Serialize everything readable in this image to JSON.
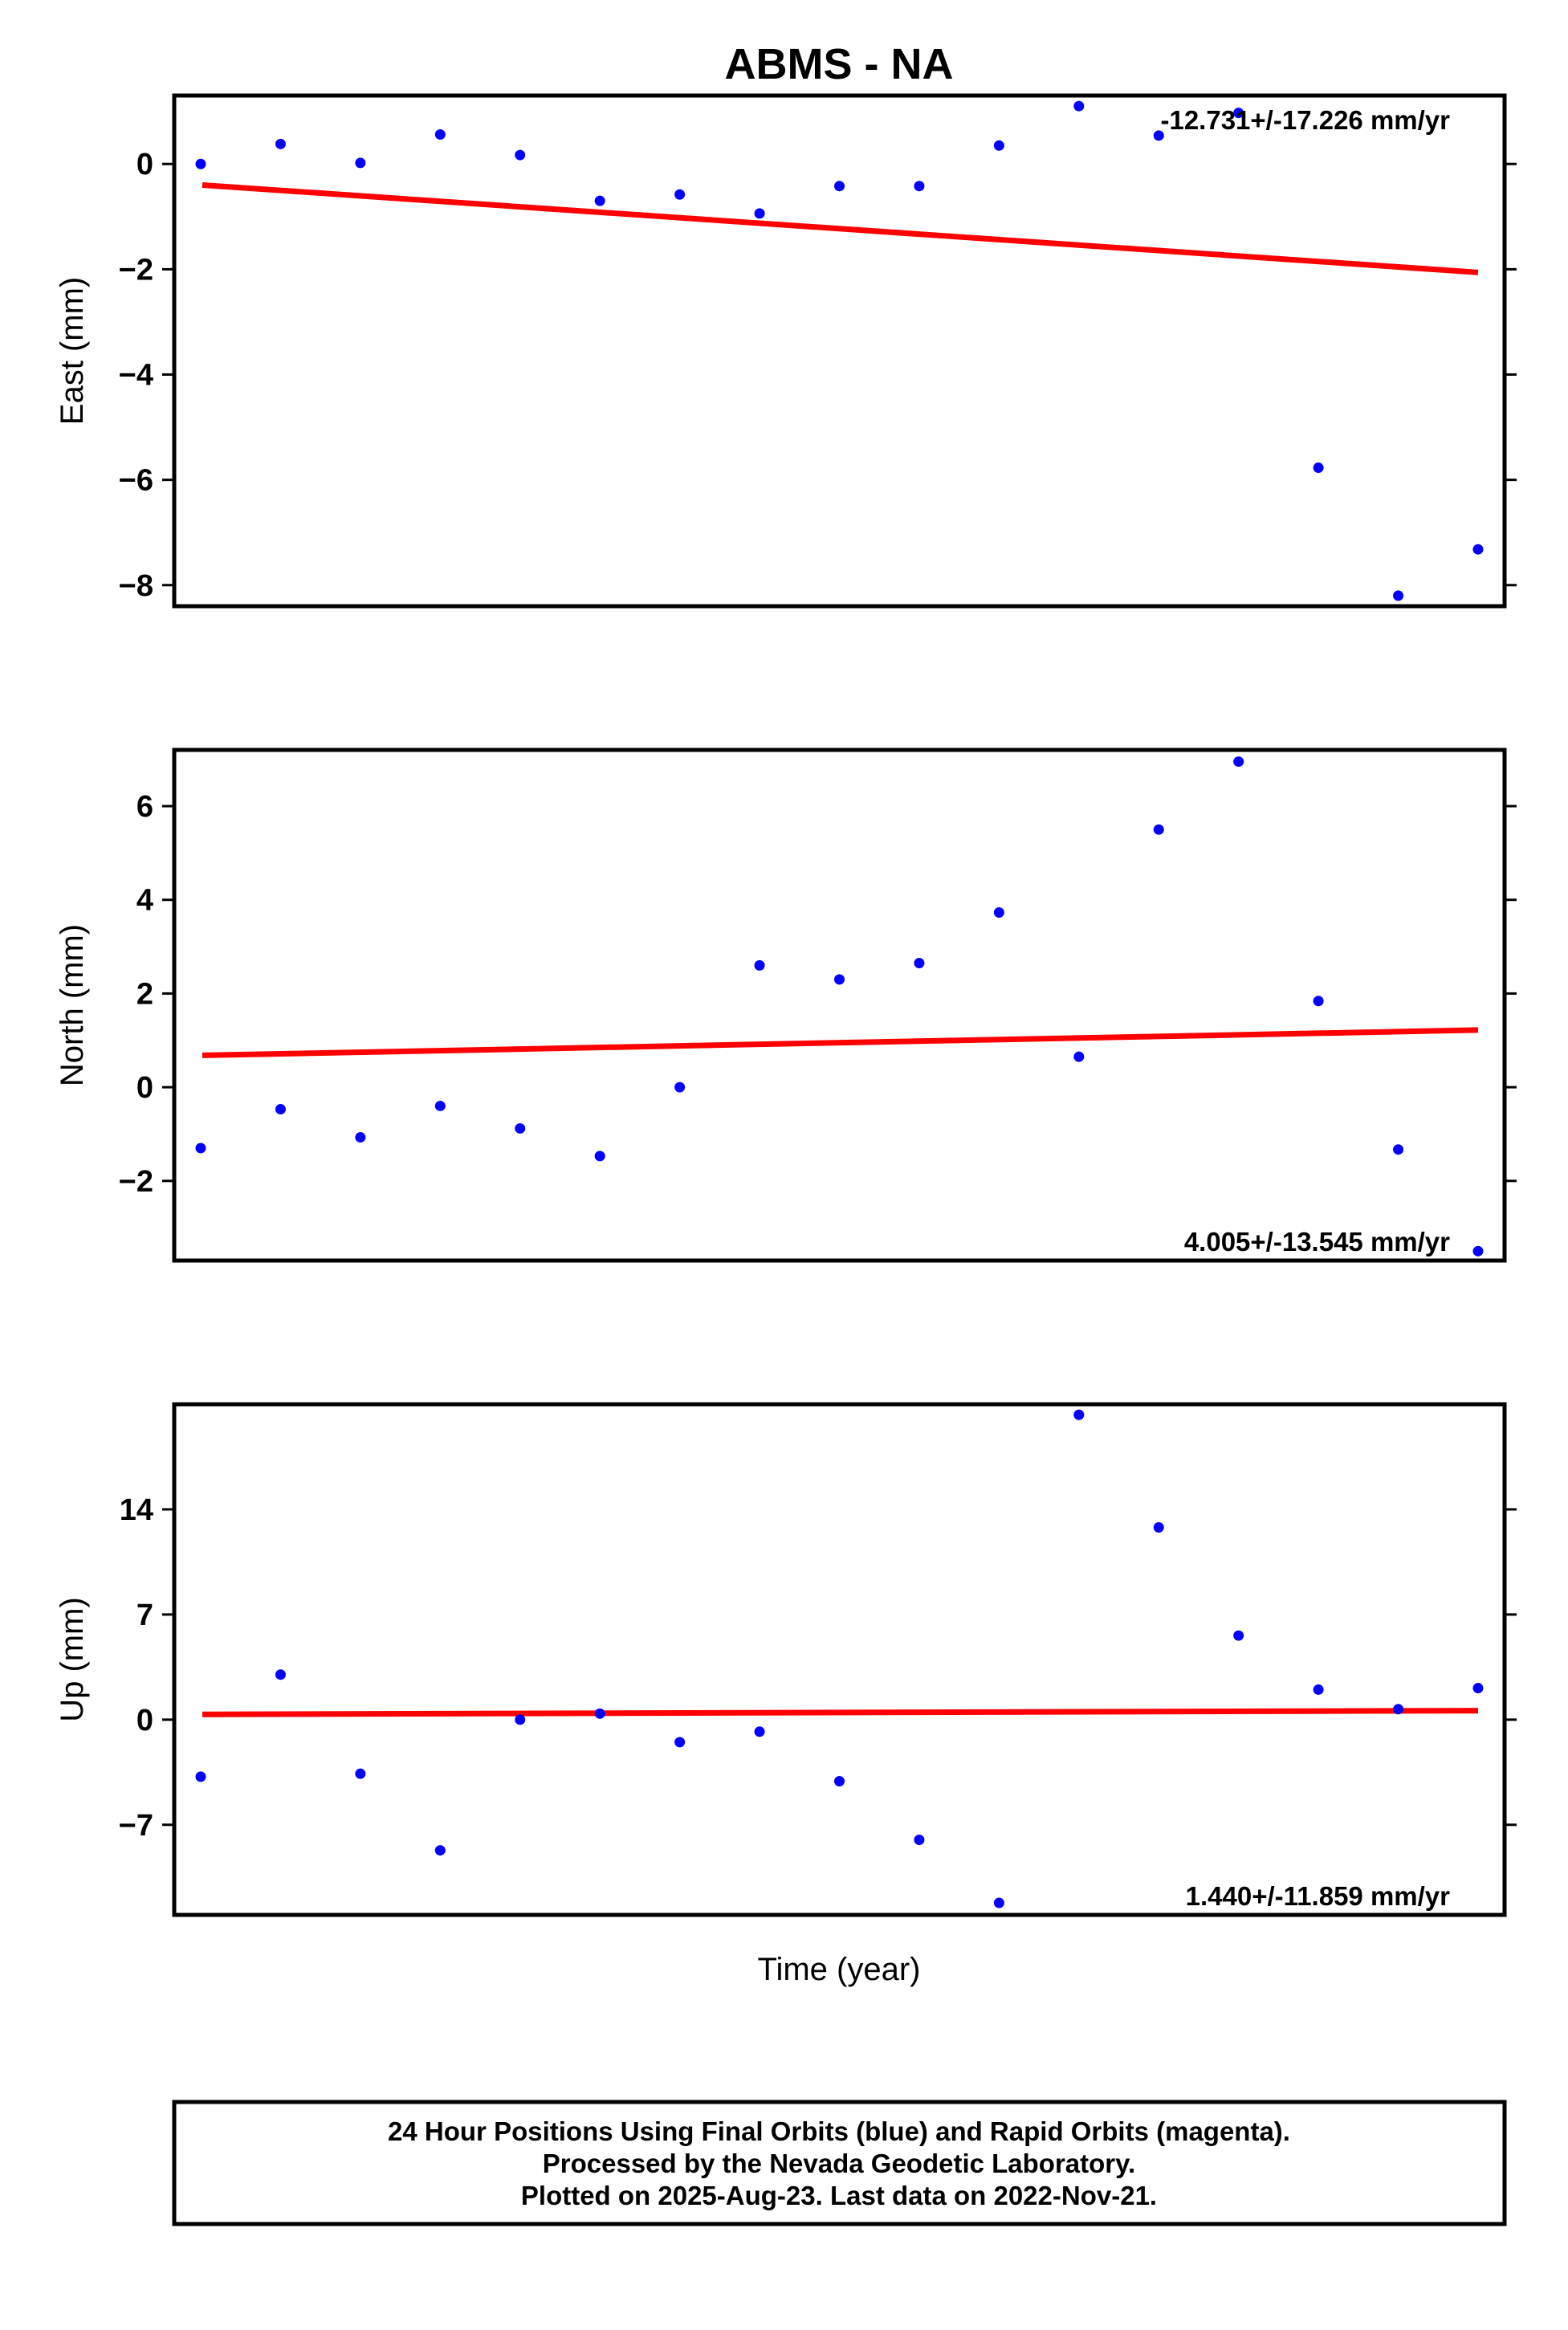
{
  "chart_data": {
    "type": "scatter",
    "title": "ABMS - NA",
    "xlabel": "Time (year)",
    "point_color": "#0000ff",
    "trend_color": "#ff0000",
    "panels": [
      {
        "ylabel": "East (mm)",
        "rate": "-12.731+/-17.226 mm/yr",
        "rate_position": "top-right",
        "ylim": [
          -8.4,
          1.3
        ],
        "yticks": [
          0,
          -2,
          -4,
          -6,
          -8
        ],
        "ytick_labels": [
          "0",
          "−2",
          "−4",
          "−6",
          "−8"
        ],
        "values": [
          0.0,
          0.38,
          0.02,
          0.56,
          0.17,
          -0.7,
          -0.58,
          -0.94,
          -0.42,
          -0.42,
          0.35,
          1.1,
          0.54,
          0.97,
          -5.77,
          -8.2,
          -7.32
        ],
        "trend": [
          -0.4,
          -2.06
        ]
      },
      {
        "ylabel": "North (mm)",
        "rate": "4.005+/-13.545 mm/yr",
        "rate_position": "bottom-right",
        "ylim": [
          -3.7,
          7.2
        ],
        "yticks": [
          6,
          4,
          2,
          0,
          -2
        ],
        "ytick_labels": [
          "6",
          "4",
          "2",
          "0",
          "−2"
        ],
        "values": [
          -1.3,
          -0.47,
          -1.07,
          -0.4,
          -0.88,
          -1.47,
          0.0,
          2.6,
          2.3,
          2.65,
          3.73,
          0.65,
          5.5,
          6.95,
          1.84,
          -1.33,
          -3.5
        ],
        "trend": [
          0.68,
          1.22
        ]
      },
      {
        "ylabel": "Up (mm)",
        "rate": "1.440+/-11.859 mm/yr",
        "rate_position": "bottom-right",
        "ylim": [
          -13,
          21
        ],
        "yticks": [
          14,
          7,
          0,
          -7
        ],
        "ytick_labels": [
          "14",
          "7",
          "0",
          "−7"
        ],
        "values": [
          -3.8,
          3.0,
          -3.6,
          -8.7,
          0.0,
          0.4,
          -1.5,
          -0.8,
          -4.1,
          -8,
          -12.2,
          20.3,
          12.8,
          5.6,
          2.0,
          0.7,
          2.1
        ],
        "trend": [
          0.35,
          0.6
        ]
      }
    ],
    "footer": [
      "24 Hour Positions Using Final Orbits (blue) and Rapid Orbits (magenta).",
      "Processed by the Nevada Geodetic Laboratory.",
      "Plotted on 2025-Aug-23. Last data on 2022-Nov-21."
    ]
  }
}
